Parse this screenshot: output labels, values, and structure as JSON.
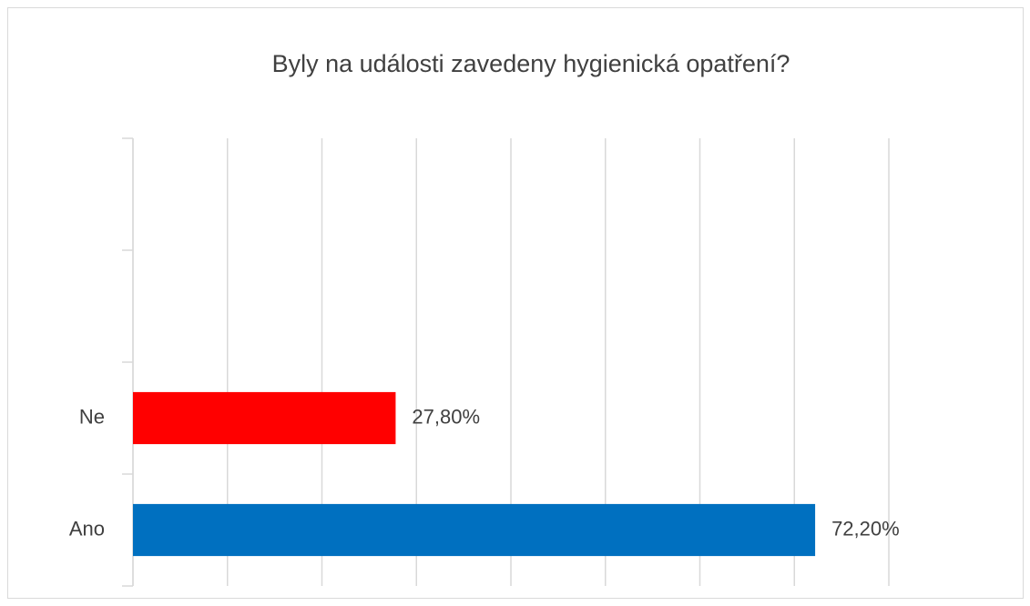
{
  "chart_data": {
    "type": "hbar",
    "title": "Byly na události zavedeny hygienická opatření?",
    "categories": [
      "Ano",
      "Ne",
      null,
      null
    ],
    "values": [
      72.2,
      27.8,
      null,
      null
    ],
    "value_labels": [
      "72,20%",
      "27,80%",
      null,
      null
    ],
    "colors": [
      "#0070c0",
      "#ff0000",
      null,
      null
    ],
    "xlim": [
      0,
      80
    ],
    "xticks": [
      0,
      10,
      20,
      30,
      40,
      50,
      60,
      70,
      80
    ],
    "grid": true
  }
}
